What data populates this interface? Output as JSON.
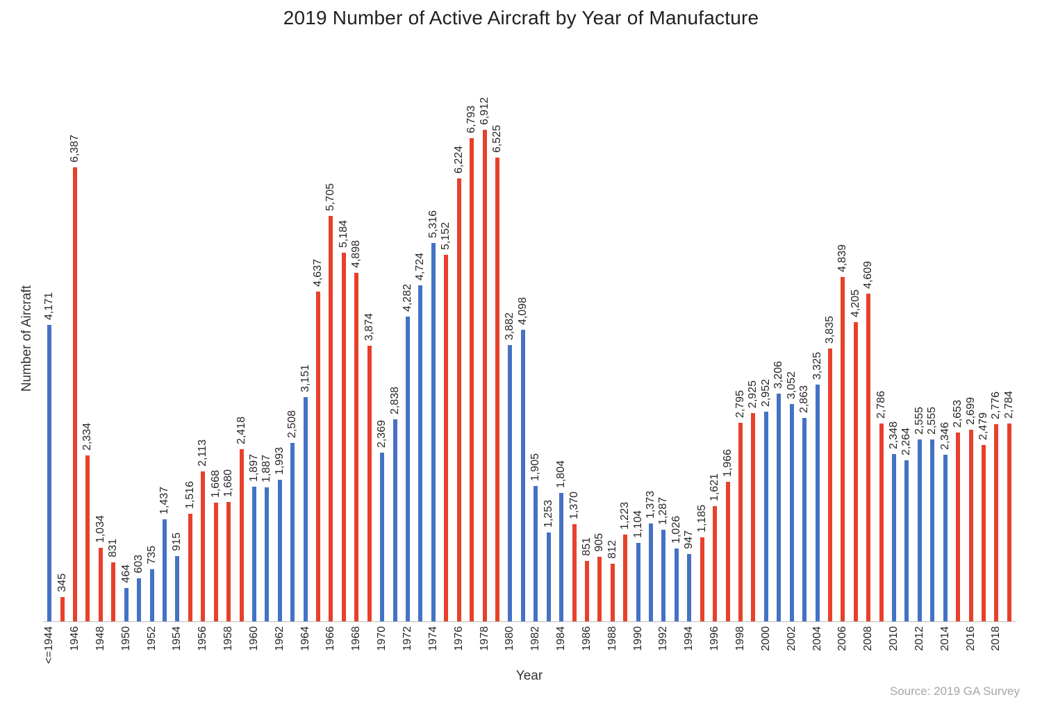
{
  "title": "2019 Number of Active Aircraft by Year of Manufacture",
  "source": "Source: 2019 GA Survey",
  "chart_data": {
    "type": "bar",
    "title": "2019 Number of Active Aircraft by Year of Manufacture",
    "xlabel": "Year",
    "ylabel": "Number of Aircraft",
    "ylim": [
      0,
      7000
    ],
    "gridlines": false,
    "legend": "none",
    "tick_every": 2,
    "value_label_format": "thousands-comma",
    "colors": {
      "blue": "#4472C4",
      "red": "#E8402B"
    },
    "categories": [
      "<=1944",
      "1945",
      "1946",
      "1947",
      "1948",
      "1949",
      "1950",
      "1951",
      "1952",
      "1953",
      "1954",
      "1955",
      "1956",
      "1957",
      "1958",
      "1959",
      "1960",
      "1961",
      "1962",
      "1963",
      "1964",
      "1965",
      "1966",
      "1967",
      "1968",
      "1969",
      "1970",
      "1971",
      "1972",
      "1973",
      "1974",
      "1975",
      "1976",
      "1977",
      "1978",
      "1979",
      "1980",
      "1981",
      "1982",
      "1983",
      "1984",
      "1985",
      "1986",
      "1987",
      "1988",
      "1989",
      "1990",
      "1991",
      "1992",
      "1993",
      "1994",
      "1995",
      "1996",
      "1997",
      "1998",
      "1999",
      "2000",
      "2001",
      "2002",
      "2003",
      "2004",
      "2005",
      "2006",
      "2007",
      "2008",
      "2009",
      "2010",
      "2011",
      "2012",
      "2013",
      "2014",
      "2015",
      "2016",
      "2017",
      "2018",
      "2019"
    ],
    "values": [
      4171,
      345,
      6387,
      2334,
      1034,
      831,
      464,
      603,
      735,
      1437,
      915,
      1516,
      2113,
      1668,
      1680,
      2418,
      1897,
      1887,
      1993,
      2508,
      3151,
      4637,
      5705,
      5184,
      4898,
      3874,
      2369,
      2838,
      4282,
      4724,
      5316,
      5152,
      6224,
      6793,
      6912,
      6525,
      3882,
      4098,
      1905,
      1253,
      1804,
      1370,
      851,
      905,
      812,
      1223,
      1104,
      1373,
      1287,
      1026,
      947,
      1185,
      1621,
      1966,
      2795,
      2925,
      2952,
      3206,
      3052,
      2863,
      3325,
      3835,
      4839,
      4205,
      4609,
      2786,
      2348,
      2264,
      2555,
      2555,
      2346,
      2653,
      2699,
      2479,
      2776,
      2784
    ],
    "bar_colors": [
      "blue",
      "red",
      "red",
      "red",
      "red",
      "red",
      "blue",
      "blue",
      "blue",
      "blue",
      "blue",
      "red",
      "red",
      "red",
      "red",
      "red",
      "blue",
      "blue",
      "blue",
      "blue",
      "blue",
      "red",
      "red",
      "red",
      "red",
      "red",
      "blue",
      "blue",
      "blue",
      "blue",
      "blue",
      "red",
      "red",
      "red",
      "red",
      "red",
      "blue",
      "blue",
      "blue",
      "blue",
      "blue",
      "red",
      "red",
      "red",
      "red",
      "red",
      "blue",
      "blue",
      "blue",
      "blue",
      "blue",
      "red",
      "red",
      "red",
      "red",
      "red",
      "blue",
      "blue",
      "blue",
      "blue",
      "blue",
      "red",
      "red",
      "red",
      "red",
      "red",
      "blue",
      "blue",
      "blue",
      "blue",
      "blue",
      "red",
      "red",
      "red",
      "red",
      "red"
    ]
  }
}
